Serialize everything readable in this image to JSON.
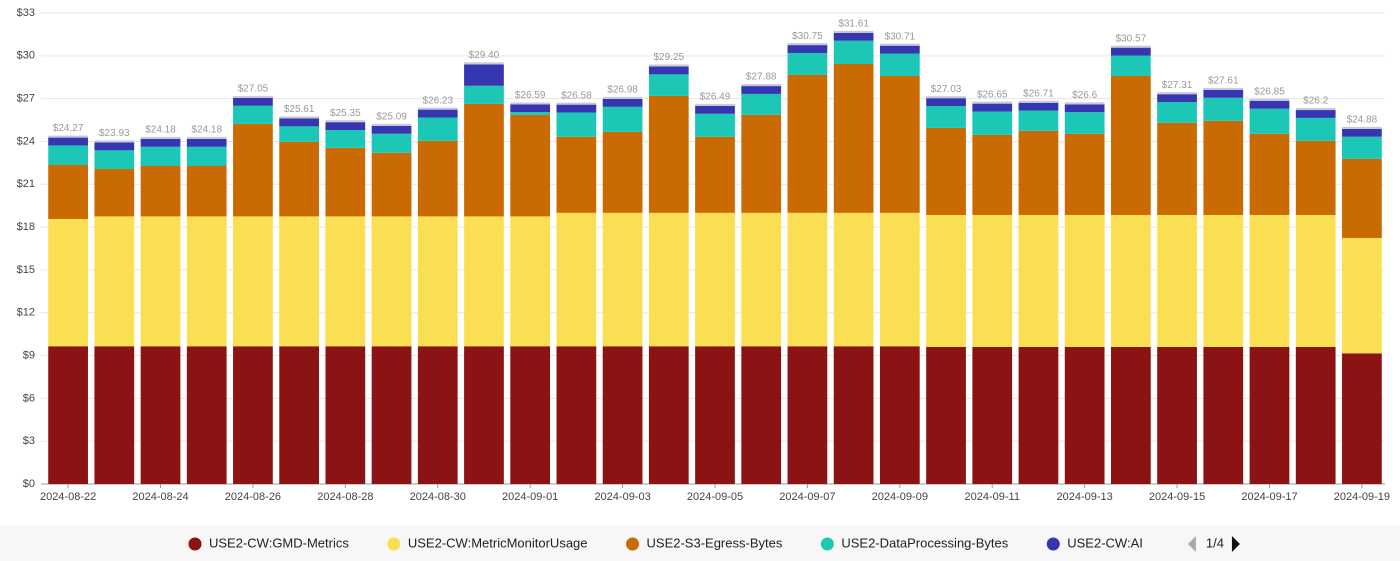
{
  "chart_data": {
    "type": "stacked_bar",
    "categories": [
      "2024-08-22",
      null,
      "2024-08-24",
      null,
      "2024-08-26",
      null,
      "2024-08-28",
      null,
      "2024-08-30",
      null,
      "2024-09-01",
      null,
      "2024-09-03",
      null,
      "2024-09-05",
      null,
      "2024-09-07",
      null,
      "2024-09-09",
      null,
      "2024-09-11",
      null,
      "2024-09-13",
      null,
      "2024-09-15",
      null,
      "2024-09-17",
      null,
      "2024-09-19"
    ],
    "series": [
      {
        "name": "USE2-CW:GMD-Metrics",
        "color": "#8c1313",
        "values": [
          9.65,
          9.65,
          9.65,
          9.65,
          9.65,
          9.65,
          9.65,
          9.65,
          9.65,
          9.65,
          9.65,
          9.65,
          9.65,
          9.65,
          9.65,
          9.65,
          9.65,
          9.65,
          9.65,
          9.6,
          9.6,
          9.6,
          9.6,
          9.6,
          9.6,
          9.6,
          9.6,
          9.6,
          9.15
        ]
      },
      {
        "name": "USE2-CW:MetricMonitorUsage",
        "color": "#fbdf52",
        "values": [
          8.92,
          9.1,
          9.1,
          9.1,
          9.1,
          9.1,
          9.1,
          9.1,
          9.1,
          9.1,
          9.1,
          9.35,
          9.35,
          9.35,
          9.35,
          9.35,
          9.35,
          9.35,
          9.35,
          9.25,
          9.25,
          9.25,
          9.25,
          9.25,
          9.25,
          9.25,
          9.25,
          9.25,
          8.09
        ]
      },
      {
        "name": "USE2-S3-Egress-Bytes",
        "color": "#c96a02",
        "values": [
          3.78,
          3.32,
          3.53,
          3.53,
          6.48,
          5.22,
          4.8,
          4.45,
          5.29,
          7.88,
          7.11,
          5.32,
          5.67,
          8.19,
          5.32,
          6.86,
          9.66,
          10.43,
          9.59,
          6.1,
          5.61,
          5.89,
          5.68,
          9.74,
          6.45,
          6.59,
          5.68,
          5.19,
          5.54
        ]
      },
      {
        "name": "USE2-DataProcessing-Bytes",
        "color": "#1cc7b5",
        "values": [
          1.37,
          1.31,
          1.35,
          1.35,
          1.27,
          1.09,
          1.25,
          1.34,
          1.64,
          1.27,
          0.2,
          1.71,
          1.76,
          1.51,
          1.62,
          1.47,
          1.54,
          1.63,
          1.57,
          1.53,
          1.64,
          1.42,
          1.52,
          1.43,
          1.46,
          1.62,
          1.77,
          1.61,
          1.55
        ]
      },
      {
        "name": "USE2-CW:AI",
        "color": "#3636b0",
        "values": [
          0.55,
          0.55,
          0.55,
          0.55,
          0.55,
          0.55,
          0.55,
          0.55,
          0.55,
          1.5,
          0.53,
          0.55,
          0.55,
          0.55,
          0.55,
          0.55,
          0.55,
          0.55,
          0.55,
          0.55,
          0.55,
          0.55,
          0.55,
          0.55,
          0.55,
          0.55,
          0.55,
          0.55,
          0.55
        ]
      }
    ],
    "total_labels": [
      "$24.27",
      "$23.93",
      "$24.18",
      "$24.18",
      "$27.05",
      "$25.61",
      "$25.35",
      "$25.09",
      "$26.23",
      "$29.40",
      "$26.59",
      "$26.58",
      "$26.98",
      "$29.25",
      "$26.49",
      "$27.88",
      "$30.75",
      "$31.61",
      "$30.71",
      "$27.03",
      "$26.65",
      "$26.71",
      "$26.6",
      "$30.57",
      "$27.31",
      "$27.61",
      "$26.85",
      "$26.2",
      "$24.88"
    ],
    "ylim": [
      0,
      33
    ],
    "yticks": [
      {
        "value": 0,
        "label": "$0"
      },
      {
        "value": 3,
        "label": "$3"
      },
      {
        "value": 6,
        "label": "$6"
      },
      {
        "value": 9,
        "label": "$9"
      },
      {
        "value": 12,
        "label": "$12"
      },
      {
        "value": 15,
        "label": "$15"
      },
      {
        "value": 18,
        "label": "$18"
      },
      {
        "value": 21,
        "label": "$21"
      },
      {
        "value": 24,
        "label": "$24"
      },
      {
        "value": 27,
        "label": "$27"
      },
      {
        "value": 30,
        "label": "$30"
      },
      {
        "value": 33,
        "label": "$33"
      }
    ],
    "grid": true,
    "legend_page": "1/4"
  }
}
